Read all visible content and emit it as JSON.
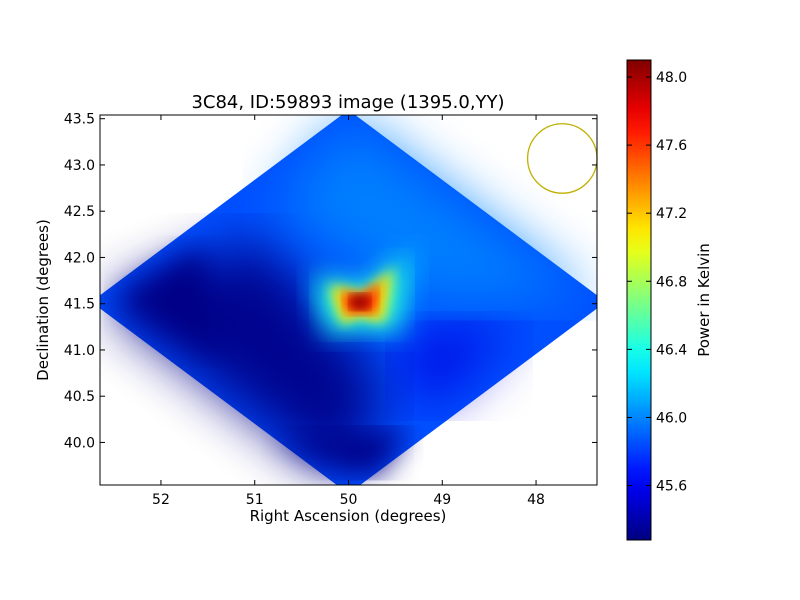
{
  "chart_data": {
    "type": "heatmap",
    "title": "3C84, ID:59893 image (1395.0,YY)",
    "xlabel": "Right Ascension (degrees)",
    "ylabel": "Declination (degrees)",
    "xlim": [
      52.65,
      47.35
    ],
    "ylim": [
      39.54,
      43.54
    ],
    "x_ticks": [
      52,
      51,
      50,
      49,
      48
    ],
    "x_tick_labels": [
      "52",
      "51",
      "50",
      "49",
      "48"
    ],
    "y_ticks": [
      40.0,
      40.5,
      41.0,
      41.5,
      42.0,
      42.5,
      43.0,
      43.5
    ],
    "y_tick_labels": [
      "40.0",
      "40.5",
      "41.0",
      "41.5",
      "42.0",
      "42.5",
      "43.0",
      "43.5"
    ],
    "colormap": "jet",
    "colorbar": {
      "label": "Power in Kelvin",
      "range": [
        45.28,
        48.1
      ],
      "ticks": [
        45.6,
        46.0,
        46.4,
        46.8,
        47.2,
        47.6,
        48.0
      ],
      "tick_labels": [
        "45.6",
        "46.0",
        "46.4",
        "46.8",
        "47.2",
        "47.6",
        "48.0"
      ]
    },
    "map": {
      "center_ra": 50.0,
      "center_dec": 41.52,
      "half_width_ra": 2.62,
      "half_height_dec": 1.98,
      "peak": {
        "ra": 49.88,
        "dec": 41.52,
        "value": 48.08
      },
      "background_value": 45.85,
      "low_value": 45.3
    },
    "beam": {
      "ra": 47.72,
      "dec": 43.07,
      "radius_deg": 0.37,
      "color": "#c0b000"
    },
    "grid": false,
    "legend": "none"
  }
}
